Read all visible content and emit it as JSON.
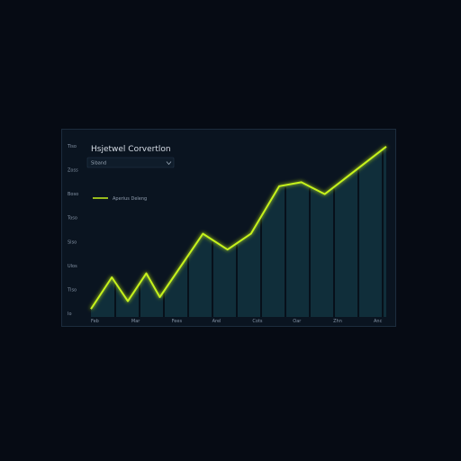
{
  "chart_data": {
    "type": "line",
    "title": "Hsjetwel Corvertlon",
    "dropdown": {
      "value": "Siband",
      "icon": "chevron-down-icon"
    },
    "legend": {
      "label": "Aperius Deleng",
      "placement": "top-left"
    },
    "categories": [
      "Feb",
      "Mar",
      "Fees",
      "Arel",
      "Cots",
      "Oar",
      "Zhn",
      "Anc"
    ],
    "y_ticks": [
      "Tiso",
      "Zoss",
      "Boso",
      "Toso",
      "Slso",
      "Ulos",
      "Tlso",
      "Io"
    ],
    "series": [
      {
        "name": "Aperius Deleng",
        "x": [
          0,
          0.85,
          1.5,
          2.25,
          2.8,
          4.55,
          5.55,
          6.5,
          7.65,
          8.55,
          9.5,
          12.0
        ],
        "values": [
          2,
          10,
          4,
          11,
          5,
          21,
          17,
          21,
          33,
          34,
          31,
          43
        ]
      }
    ],
    "xlim": [
      0,
      12
    ],
    "ylim": [
      0,
      45
    ],
    "grid": false,
    "colors": {
      "line": "#c6f21a",
      "fill": "#112f3c",
      "background": "#0a1420",
      "border": "#1c2c3d"
    }
  }
}
